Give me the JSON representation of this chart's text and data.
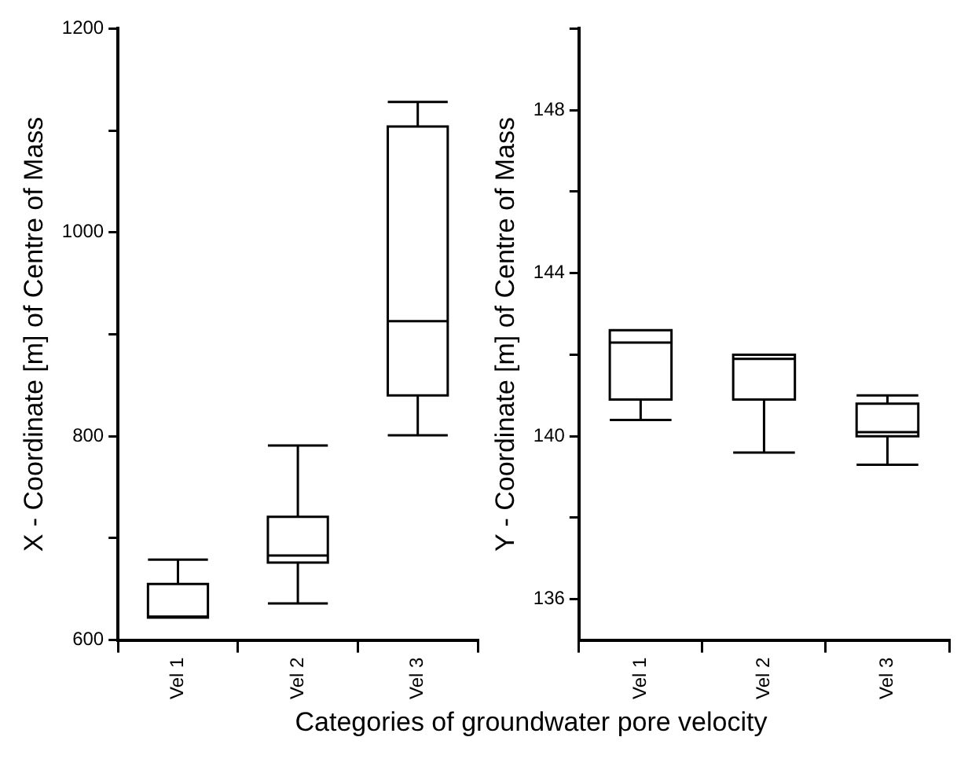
{
  "chart_data": [
    {
      "type": "box",
      "ylabel": "X - Coordinate [m] of Centre of Mass",
      "xlabel": "Categories of groundwater pore velocity",
      "categories": [
        "Vel 1",
        "Vel 2",
        "Vel 3"
      ],
      "ylim": [
        600,
        1200
      ],
      "yticks": [
        600,
        {
          "value": 700,
          "label": null
        },
        800,
        {
          "value": 900,
          "label": null
        },
        1000,
        {
          "value": 1100,
          "label": null
        },
        1200
      ],
      "boxes": [
        {
          "low": 622,
          "q1": 622,
          "median": 623,
          "q3": 655,
          "high": 679
        },
        {
          "low": 636,
          "q1": 676,
          "median": 683,
          "q3": 721,
          "high": 791
        },
        {
          "low": 801,
          "q1": 840,
          "median": 913,
          "q3": 1104,
          "high": 1128
        }
      ]
    },
    {
      "type": "box",
      "ylabel": "Y - Coordinate [m] of Centre of Mass",
      "categories": [
        "Vel 1",
        "Vel 2",
        "Vel 3"
      ],
      "ylim": [
        135,
        150
      ],
      "yticks": [
        136,
        {
          "value": 138,
          "label": null
        },
        140,
        {
          "value": 142,
          "label": null
        },
        144,
        {
          "value": 146,
          "label": null
        },
        148,
        {
          "value": 150,
          "label": null
        }
      ],
      "boxes": [
        {
          "low": 140.4,
          "q1": 140.9,
          "median": 142.3,
          "q3": 142.6,
          "high": 142.6
        },
        {
          "low": 139.6,
          "q1": 140.9,
          "median": 141.9,
          "q3": 142.0,
          "high": 142.0
        },
        {
          "low": 139.3,
          "q1": 140.0,
          "median": 140.1,
          "q3": 140.8,
          "high": 141.0
        }
      ]
    }
  ]
}
